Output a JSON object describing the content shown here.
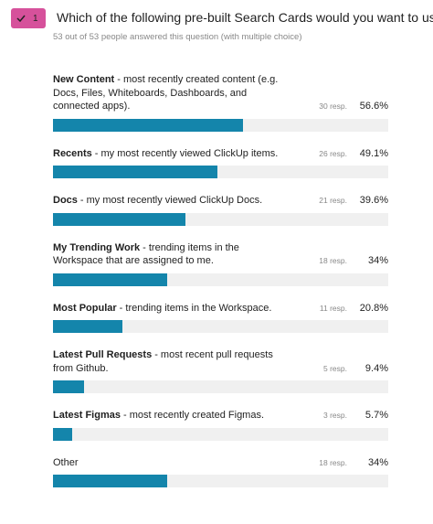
{
  "question": {
    "badge": "1",
    "title": "Which of the following pre-built Search Cards would you want to use?",
    "subtitle": "53 out of 53 people answered this question (with multiple choice)"
  },
  "options": [
    {
      "name": "New Content",
      "description": "- most recently created content (e.g. Docs, Files, Whiteboards, Dashboards, and connected apps).",
      "responses": {
        "value": 30,
        "label": "30 resp."
      },
      "percent": {
        "value": 56.6,
        "label": "56.6%"
      }
    },
    {
      "name": "Recents",
      "description": "- my most recently viewed ClickUp items.",
      "responses": {
        "value": 26,
        "label": "26 resp."
      },
      "percent": {
        "value": 49.1,
        "label": "49.1%"
      }
    },
    {
      "name": "Docs",
      "description": "- my most recently viewed ClickUp Docs.",
      "responses": {
        "value": 21,
        "label": "21 resp."
      },
      "percent": {
        "value": 39.6,
        "label": "39.6%"
      }
    },
    {
      "name": "My Trending Work",
      "description": "- trending items in the Workspace that are assigned to me.",
      "responses": {
        "value": 18,
        "label": "18 resp."
      },
      "percent": {
        "value": 34,
        "label": "34%"
      }
    },
    {
      "name": "Most Popular",
      "description": "- trending items in the Workspace.",
      "responses": {
        "value": 11,
        "label": "11 resp."
      },
      "percent": {
        "value": 20.8,
        "label": "20.8%"
      }
    },
    {
      "name": "Latest Pull Requests",
      "description": "- most recent pull requests from Github.",
      "responses": {
        "value": 5,
        "label": "5 resp."
      },
      "percent": {
        "value": 9.4,
        "label": "9.4%"
      }
    },
    {
      "name": "Latest Figmas",
      "description": "- most recently created Figmas.",
      "responses": {
        "value": 3,
        "label": "3 resp."
      },
      "percent": {
        "value": 5.7,
        "label": "5.7%"
      }
    },
    {
      "name": "Other",
      "description": null,
      "responses": {
        "value": 18,
        "label": "18 resp."
      },
      "percent": {
        "value": 34,
        "label": "34%"
      }
    }
  ]
}
